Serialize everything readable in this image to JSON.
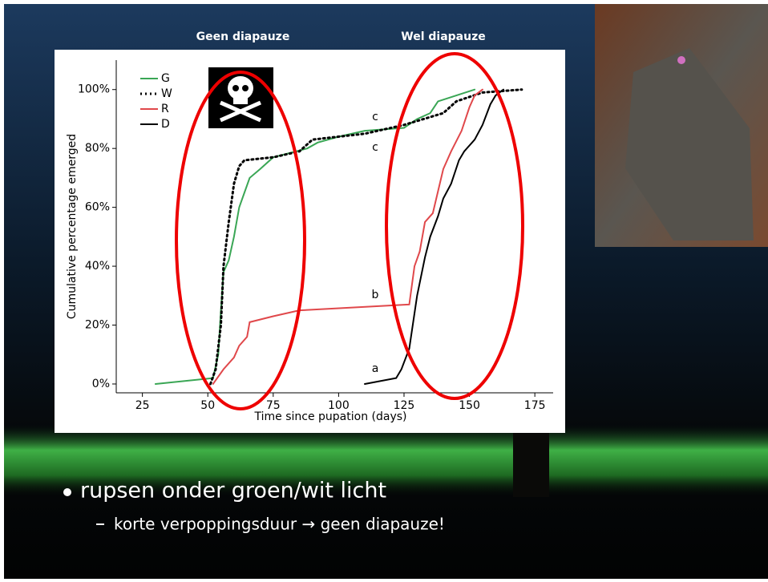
{
  "slide": {
    "column_labels": [
      "Geen diapauze",
      "Wel diapauze"
    ],
    "bullet": "rupsen onder groen/wit licht",
    "sub_bullet": "korte verpoppingsduur → geen diapauze!"
  },
  "chart_data": {
    "type": "line",
    "x_label": "Time since pupation (days)",
    "y_label": "Cumulative percentage emerged",
    "xlim": [
      15,
      182
    ],
    "ylim": [
      -3,
      110
    ],
    "xticks": [
      25,
      50,
      75,
      100,
      125,
      150,
      175
    ],
    "yticks": [
      {
        "value": 0,
        "label": "0%"
      },
      {
        "value": 20,
        "label": "20%"
      },
      {
        "value": 40,
        "label": "40%"
      },
      {
        "value": 60,
        "label": "60%"
      },
      {
        "value": 80,
        "label": "80%"
      },
      {
        "value": 100,
        "label": "100%"
      }
    ],
    "legend": "top-left",
    "annotations": [
      "c",
      "c",
      "b",
      "a"
    ],
    "series": [
      {
        "name": "G",
        "color": "#3aa655",
        "style": "solid",
        "x": [
          30,
          52,
          54,
          55,
          56,
          58,
          60,
          62,
          64,
          66,
          70,
          75,
          88,
          92,
          100,
          110,
          125,
          130,
          135,
          138,
          145,
          152
        ],
        "values": [
          0,
          2,
          10,
          25,
          38,
          42,
          50,
          60,
          65,
          70,
          73,
          77,
          80,
          82,
          84,
          86,
          87,
          90,
          92,
          96,
          98,
          100
        ]
      },
      {
        "name": "W",
        "color": "#000000",
        "style": "dotted",
        "x": [
          51,
          53,
          55,
          56,
          58,
          60,
          62,
          64,
          75,
          85,
          90,
          110,
          125,
          140,
          145,
          155,
          170
        ],
        "values": [
          0,
          5,
          20,
          40,
          55,
          68,
          74,
          76,
          77,
          79,
          83,
          85,
          88,
          92,
          96,
          99,
          100
        ]
      },
      {
        "name": "R",
        "color": "#e0484b",
        "style": "solid",
        "x": [
          52,
          56,
          60,
          62,
          65,
          66,
          75,
          85,
          127,
          129,
          131,
          133,
          136,
          140,
          143,
          147,
          150,
          152,
          155
        ],
        "values": [
          0,
          5,
          9,
          13,
          16,
          21,
          23,
          25,
          27,
          40,
          45,
          55,
          58,
          73,
          79,
          86,
          94,
          98,
          100
        ]
      },
      {
        "name": "D",
        "color": "#000000",
        "style": "solid",
        "x": [
          110,
          122,
          124,
          127,
          130,
          133,
          135,
          138,
          140,
          143,
          146,
          148,
          152,
          155,
          158,
          160,
          163
        ],
        "values": [
          0,
          2,
          5,
          12,
          30,
          43,
          50,
          57,
          63,
          68,
          76,
          79,
          83,
          88,
          95,
          98,
          100
        ]
      }
    ]
  }
}
